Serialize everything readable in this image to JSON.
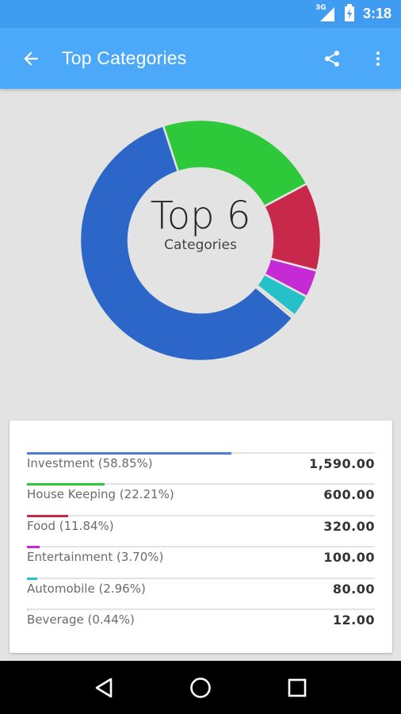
{
  "status_bar": {
    "network": "3G",
    "time": "3:18",
    "icons": [
      "signal-icon",
      "battery-icon"
    ]
  },
  "app_bar": {
    "title": "Top Categories",
    "icons": [
      "back-arrow-icon",
      "share-icon",
      "more-vert-icon"
    ]
  },
  "chart_center": {
    "big": "Top 6",
    "small": "Categories"
  },
  "chart_data": {
    "type": "pie",
    "categories": [
      "Investment",
      "House Keeping",
      "Food",
      "Entertainment",
      "Automobile",
      "Beverage"
    ],
    "values": [
      58.85,
      22.21,
      11.84,
      3.7,
      2.96,
      0.44
    ],
    "colors": [
      "#2b66c8",
      "#2ec93a",
      "#c8284a",
      "#c52ad5",
      "#26c0c8",
      "#d8d8a8"
    ]
  },
  "categories": [
    {
      "label": "Investment (58.85%)",
      "amount": "1,590.00",
      "percent": 58.85,
      "color": "#4a7ed0"
    },
    {
      "label": "House Keeping (22.21%)",
      "amount": "600.00",
      "percent": 22.21,
      "color": "#2ec93a"
    },
    {
      "label": "Food (11.84%)",
      "amount": "320.00",
      "percent": 11.84,
      "color": "#c8284a"
    },
    {
      "label": "Entertainment (3.70%)",
      "amount": "100.00",
      "percent": 3.7,
      "color": "#c52ad5"
    },
    {
      "label": "Automobile (2.96%)",
      "amount": "80.00",
      "percent": 2.96,
      "color": "#26c0c8"
    },
    {
      "label": "Beverage (0.44%)",
      "amount": "12.00",
      "percent": 0.44,
      "color": "#d8d8a8"
    }
  ],
  "nav_bar": {
    "icons": [
      "back-triangle-icon",
      "home-circle-icon",
      "recents-square-icon"
    ]
  }
}
